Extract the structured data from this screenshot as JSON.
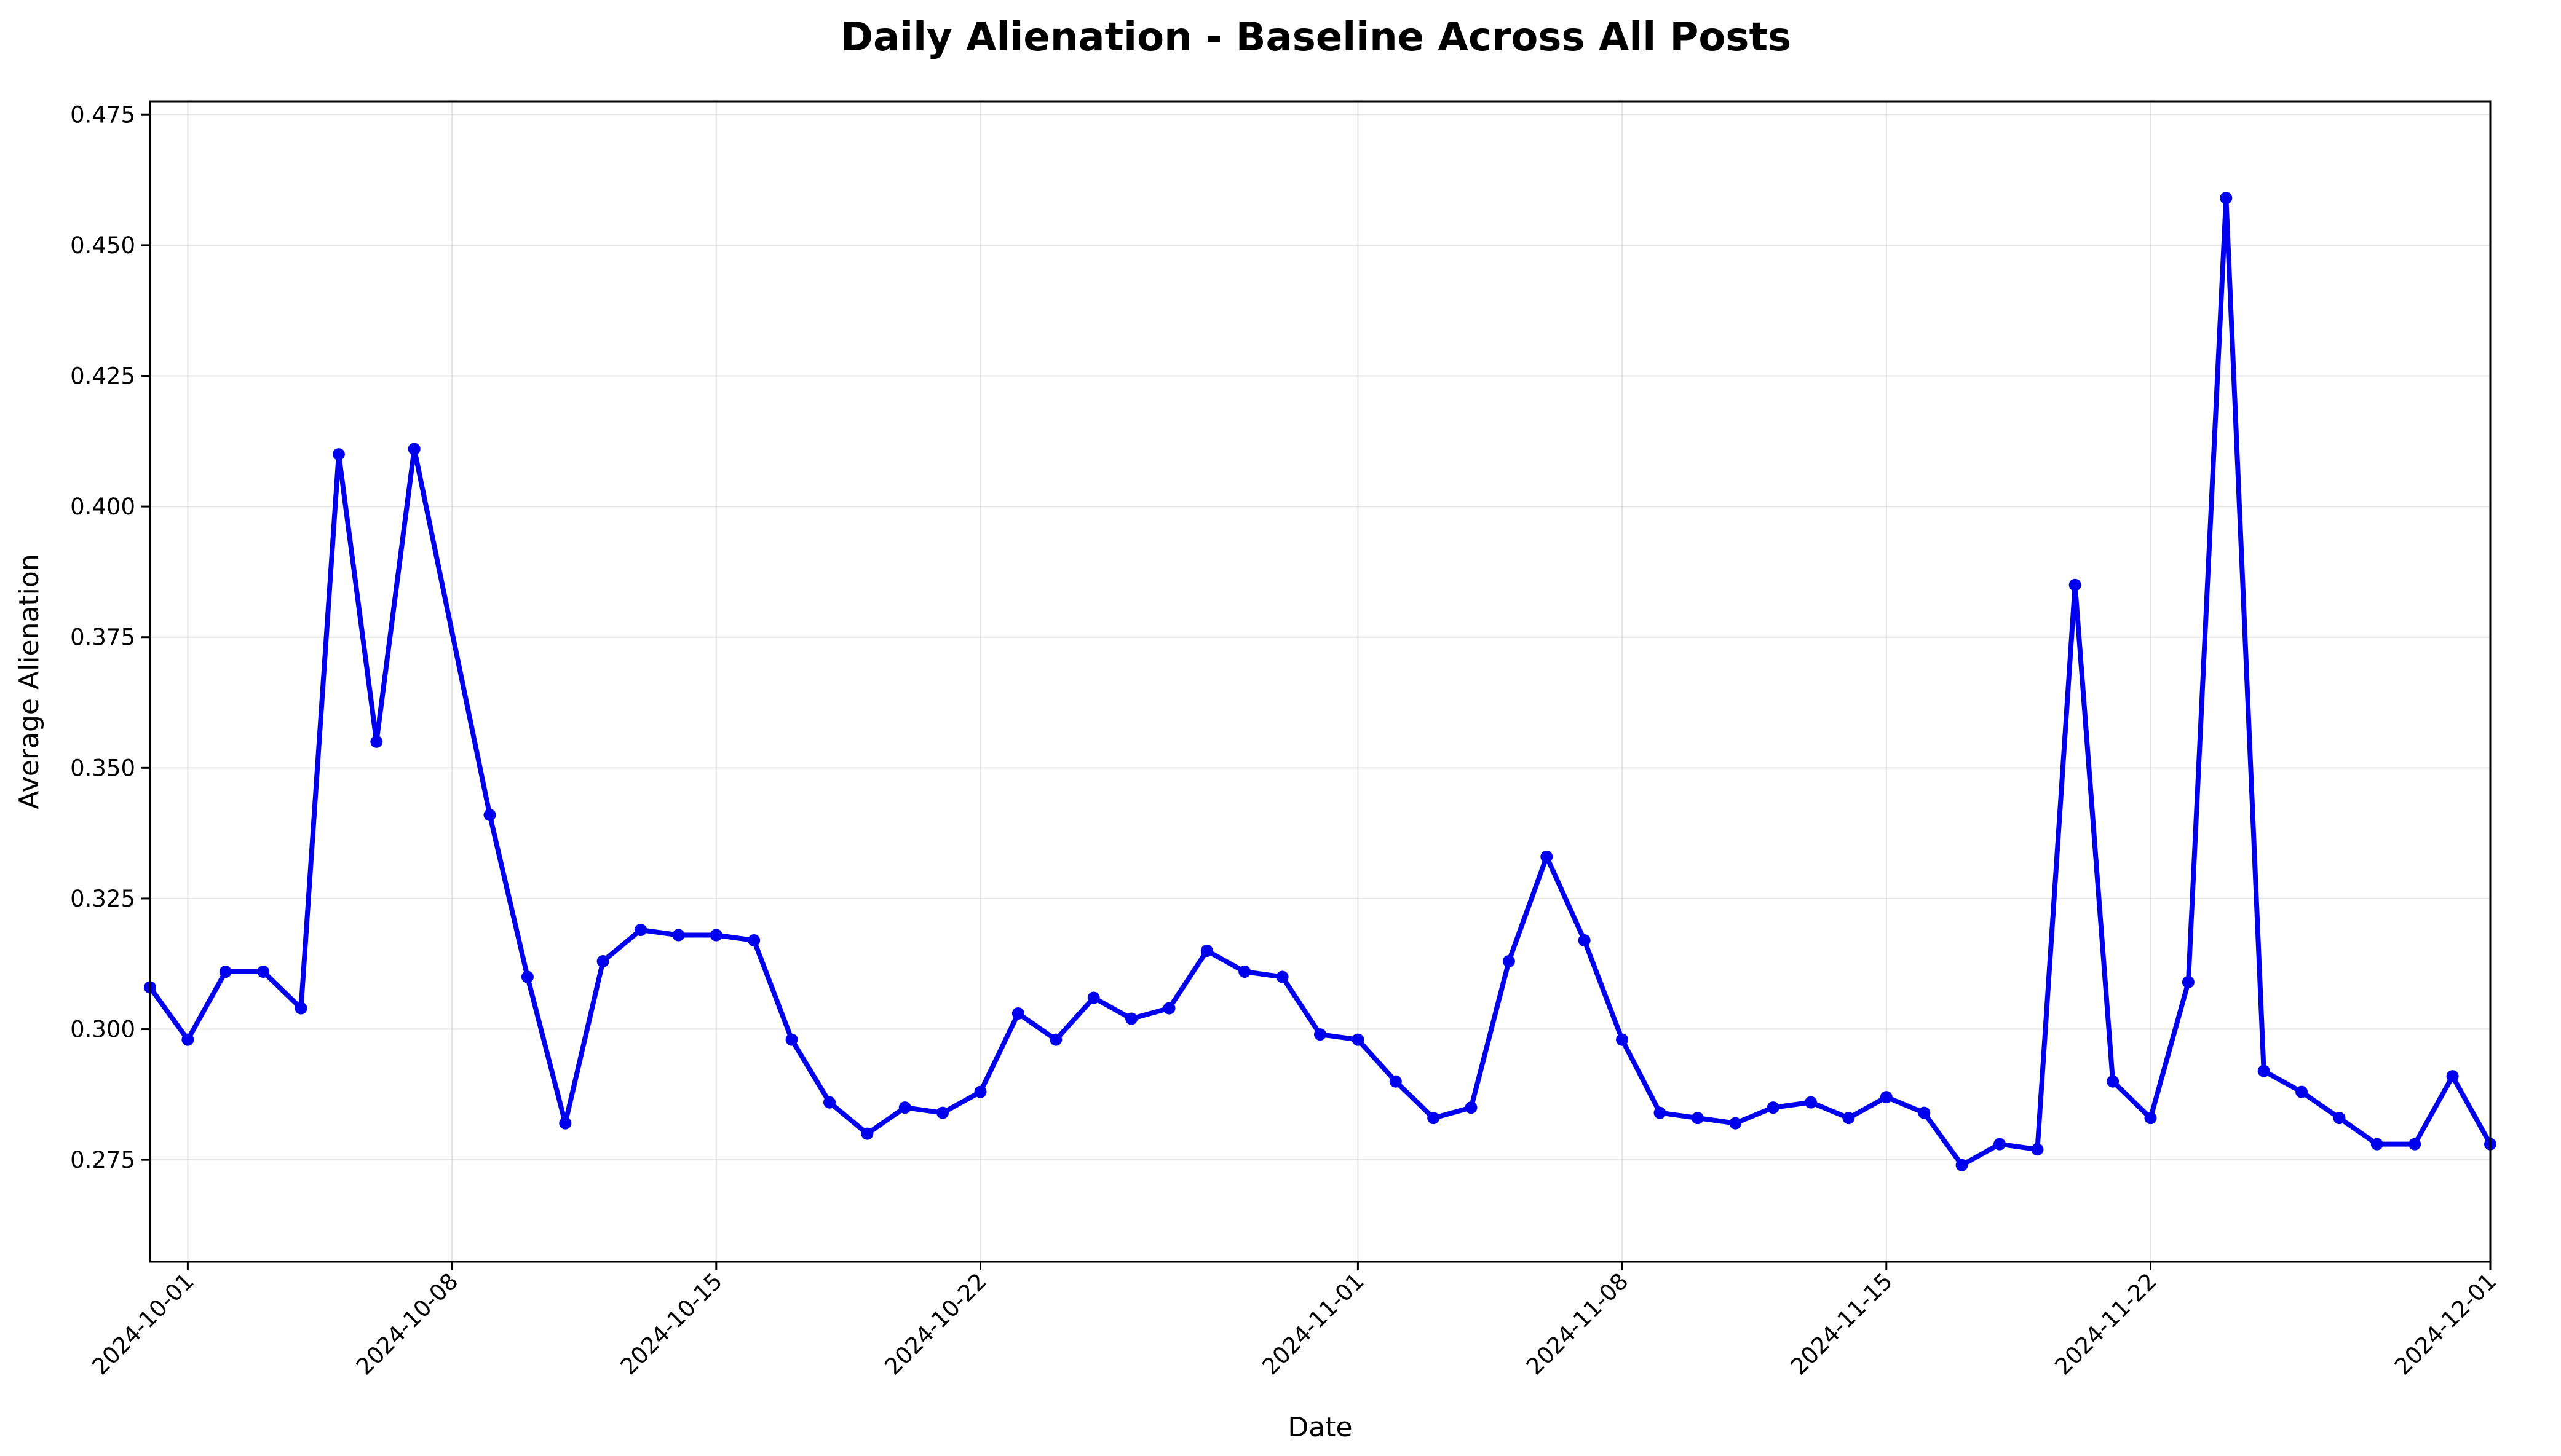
{
  "chart_data": {
    "type": "line",
    "title": "Daily Alienation - Baseline Across All Posts",
    "xlabel": "Date",
    "ylabel": "Average Alienation",
    "xlim": [
      "2024-09-30",
      "2024-12-01"
    ],
    "ylim": [
      0.2555,
      0.4775
    ],
    "grid": true,
    "color": "#0000ee",
    "x_ticks": [
      "2024-10-01",
      "2024-10-08",
      "2024-10-15",
      "2024-10-22",
      "2024-11-01",
      "2024-11-08",
      "2024-11-15",
      "2024-11-22",
      "2024-12-01"
    ],
    "y_ticks": [
      "0.275",
      "0.300",
      "0.325",
      "0.350",
      "0.375",
      "0.400",
      "0.425",
      "0.450",
      "0.475"
    ],
    "series": [
      {
        "dates": [
          "2024-09-30",
          "2024-10-01",
          "2024-10-02",
          "2024-10-03",
          "2024-10-04",
          "2024-10-05",
          "2024-10-06",
          "2024-10-07",
          "2024-10-09",
          "2024-10-10",
          "2024-10-11",
          "2024-10-12",
          "2024-10-13",
          "2024-10-14",
          "2024-10-15",
          "2024-10-16",
          "2024-10-17",
          "2024-10-18",
          "2024-10-19",
          "2024-10-20",
          "2024-10-21",
          "2024-10-22",
          "2024-10-23",
          "2024-10-24",
          "2024-10-25",
          "2024-10-26",
          "2024-10-27",
          "2024-10-28",
          "2024-10-29",
          "2024-10-30",
          "2024-10-31",
          "2024-11-01",
          "2024-11-02",
          "2024-11-03",
          "2024-11-04",
          "2024-11-05",
          "2024-11-06",
          "2024-11-07",
          "2024-11-08",
          "2024-11-09",
          "2024-11-10",
          "2024-11-11",
          "2024-11-12",
          "2024-11-13",
          "2024-11-14",
          "2024-11-15",
          "2024-11-16",
          "2024-11-17",
          "2024-11-18",
          "2024-11-19",
          "2024-11-20",
          "2024-11-21",
          "2024-11-22",
          "2024-11-23",
          "2024-11-24",
          "2024-11-25",
          "2024-11-26",
          "2024-11-27",
          "2024-11-28",
          "2024-11-29",
          "2024-11-30",
          "2024-12-01"
        ],
        "values": [
          0.308,
          0.298,
          0.311,
          0.311,
          0.304,
          0.41,
          0.355,
          0.411,
          0.341,
          0.31,
          0.282,
          0.313,
          0.319,
          0.318,
          0.318,
          0.317,
          0.298,
          0.286,
          0.28,
          0.285,
          0.284,
          0.288,
          0.303,
          0.298,
          0.306,
          0.302,
          0.304,
          0.315,
          0.311,
          0.31,
          0.299,
          0.298,
          0.29,
          0.283,
          0.285,
          0.313,
          0.333,
          0.317,
          0.298,
          0.284,
          0.283,
          0.282,
          0.285,
          0.286,
          0.283,
          0.287,
          0.284,
          0.274,
          0.278,
          0.277,
          0.385,
          0.29,
          0.283,
          0.309,
          0.459,
          0.292,
          0.288,
          0.283,
          0.278,
          0.278,
          0.291,
          0.278
        ]
      }
    ]
  }
}
